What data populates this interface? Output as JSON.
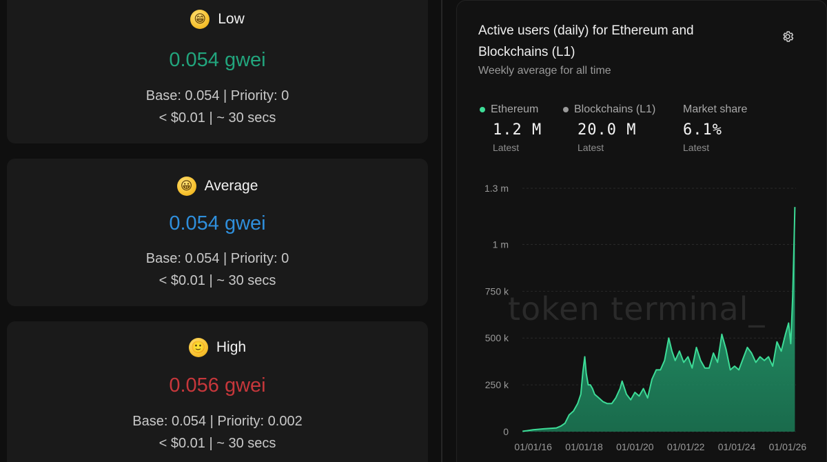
{
  "gas": {
    "low": {
      "emoji": "😁",
      "label": "Low",
      "value": "0.054 gwei",
      "breakdown": "Base: 0.054 | Priority: 0",
      "cost": "< $0.01 | ~ 30 secs",
      "color": "#22a57d"
    },
    "average": {
      "emoji": "😀",
      "label": "Average",
      "value": "0.054 gwei",
      "breakdown": "Base: 0.054 | Priority: 0",
      "cost": "< $0.01 | ~ 30 secs",
      "color": "#2f8fdc"
    },
    "high": {
      "emoji": "🙂",
      "label": "High",
      "value": "0.056 gwei",
      "breakdown": "Base: 0.054 | Priority: 0.002",
      "cost": "< $0.01 | ~ 30 secs",
      "color": "#c7373b"
    }
  },
  "chart_panel": {
    "title": "Active users (daily) for Ethereum and Blockchains (L1)",
    "subtitle": "Weekly average for all time",
    "settings_icon": "gear-icon",
    "watermark": "token terminal_",
    "stats": [
      {
        "name": "Ethereum",
        "value": "1.2 M",
        "sub": "Latest",
        "dot_color": "#3ddc97"
      },
      {
        "name": "Blockchains (L1)",
        "value": "20.0 M",
        "sub": "Latest",
        "dot_color": "#9a9a9a"
      },
      {
        "name": "Market share",
        "value": "6.1%",
        "sub": "Latest"
      }
    ]
  },
  "chart_data": {
    "type": "area",
    "title": "Active users (daily) for Ethereum and Blockchains (L1)",
    "subtitle": "Weekly average for all time",
    "xlabel": "",
    "ylabel": "",
    "x_ticks": [
      "01/01/16",
      "01/01/18",
      "01/01/20",
      "01/01/22",
      "01/01/24",
      "01/01/26"
    ],
    "y_ticks": [
      "0",
      "250 k",
      "500 k",
      "750 k",
      "1 m",
      "1.3 m"
    ],
    "y_tick_values": [
      0,
      250000,
      500000,
      750000,
      1000000,
      1300000
    ],
    "ylim": [
      0,
      1300000
    ],
    "xlim": [
      "2015-07-30",
      "2026-05-01"
    ],
    "grid": true,
    "series": [
      {
        "name": "Ethereum",
        "color": "#3ddc97",
        "x": [
          "2015-08-01",
          "2016-01-01",
          "2016-06-01",
          "2016-12-01",
          "2017-02-01",
          "2017-04-01",
          "2017-06-01",
          "2017-08-01",
          "2017-10-01",
          "2017-11-15",
          "2017-12-15",
          "2018-01-10",
          "2018-02-01",
          "2018-03-01",
          "2018-04-01",
          "2018-05-01",
          "2018-06-01",
          "2018-08-01",
          "2018-10-01",
          "2018-12-01",
          "2019-02-01",
          "2019-04-01",
          "2019-06-01",
          "2019-07-01",
          "2019-09-01",
          "2019-11-01",
          "2020-01-01",
          "2020-03-01",
          "2020-05-01",
          "2020-07-01",
          "2020-09-01",
          "2020-11-01",
          "2021-01-01",
          "2021-03-01",
          "2021-05-01",
          "2021-06-15",
          "2021-08-01",
          "2021-10-01",
          "2021-12-01",
          "2022-02-01",
          "2022-04-01",
          "2022-06-01",
          "2022-08-01",
          "2022-10-01",
          "2022-12-01",
          "2023-02-01",
          "2023-04-01",
          "2023-06-01",
          "2023-08-01",
          "2023-10-01",
          "2023-12-01",
          "2024-02-01",
          "2024-04-01",
          "2024-06-01",
          "2024-08-01",
          "2024-10-01",
          "2024-12-01",
          "2025-02-01",
          "2025-04-01",
          "2025-06-01",
          "2025-08-01",
          "2025-10-01",
          "2025-12-01",
          "2026-01-15",
          "2026-02-15",
          "2026-03-15",
          "2026-04-01",
          "2026-04-15"
        ],
        "values": [
          2000,
          10000,
          15000,
          20000,
          30000,
          45000,
          90000,
          110000,
          150000,
          200000,
          320000,
          400000,
          310000,
          250000,
          250000,
          230000,
          200000,
          180000,
          160000,
          150000,
          150000,
          180000,
          230000,
          270000,
          200000,
          170000,
          210000,
          190000,
          230000,
          180000,
          280000,
          330000,
          330000,
          380000,
          500000,
          430000,
          380000,
          430000,
          370000,
          400000,
          340000,
          450000,
          380000,
          340000,
          340000,
          420000,
          370000,
          520000,
          440000,
          330000,
          350000,
          330000,
          390000,
          450000,
          420000,
          370000,
          400000,
          380000,
          400000,
          350000,
          480000,
          430000,
          520000,
          580000,
          470000,
          720000,
          980000,
          1200000
        ]
      }
    ]
  }
}
